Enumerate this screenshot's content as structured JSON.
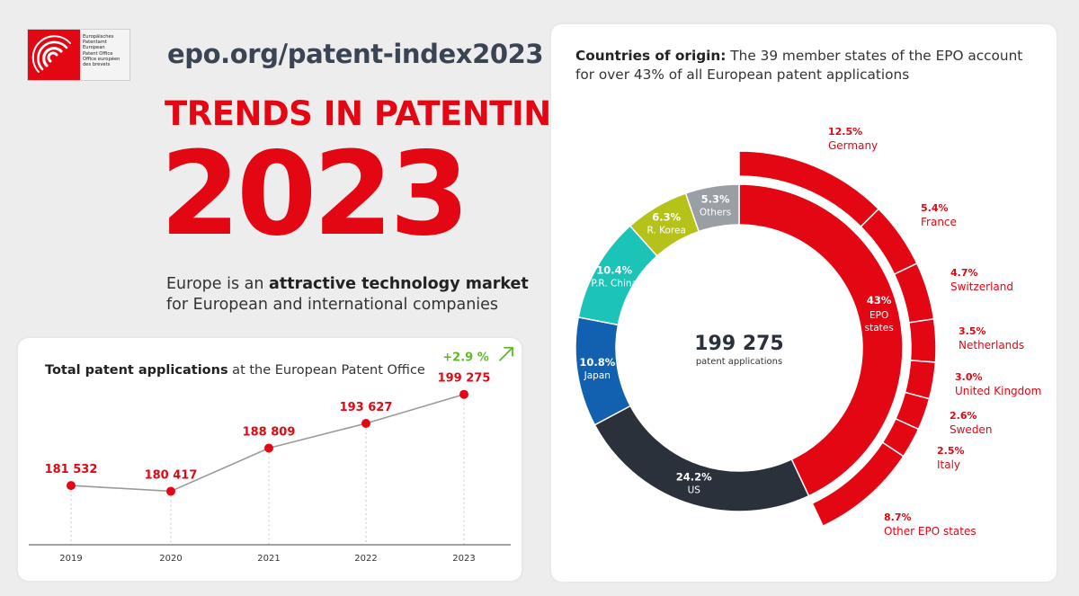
{
  "header": {
    "logo_lines": [
      "Europäisches",
      "Patentamt",
      "European",
      "Patent Office",
      "Office européen",
      "des brevets"
    ],
    "url": "epo.org/patent-index2023",
    "trends_title": "TRENDS IN PATENTING",
    "year": "2023",
    "tagline_pre": "Europe is an ",
    "tagline_bold": "attractive technology market",
    "tagline_post": "for European and international companies"
  },
  "colors": {
    "red": "#e30613",
    "dark": "#2b313b",
    "blue": "#1260b0",
    "teal": "#1cc4b8",
    "olive": "#b5c21a",
    "gray": "#9a9fa6",
    "green": "#5fb829"
  },
  "chart_data": [
    {
      "type": "line",
      "title_bold": "Total patent applications",
      "title_rest": " at the European Patent Office",
      "x": [
        "2019",
        "2020",
        "2021",
        "2022",
        "2023"
      ],
      "values": [
        181532,
        180417,
        188809,
        193627,
        199275
      ],
      "value_labels": [
        "181 532",
        "180 417",
        "188 809",
        "193 627",
        "199 275"
      ],
      "growth_label": "+2.9 %",
      "ylim": [
        170000,
        205000
      ]
    },
    {
      "type": "pie",
      "title_bold": "Countries of origin:",
      "title_rest": " The 39 member states of the EPO account for over 43% of all European patent applications",
      "center_value": "199 275",
      "center_label": "patent applications",
      "slices": [
        {
          "label": "EPO states",
          "value": 43,
          "display": "43%",
          "color": "#e30613"
        },
        {
          "label": "US",
          "value": 24.2,
          "display": "24.2%",
          "color": "#2b313b"
        },
        {
          "label": "Japan",
          "value": 10.8,
          "display": "10.8%",
          "color": "#1260b0"
        },
        {
          "label": "P.R. China",
          "value": 10.4,
          "display": "10.4%",
          "color": "#1cc4b8"
        },
        {
          "label": "R. Korea",
          "value": 6.3,
          "display": "6.3%",
          "color": "#b5c21a"
        },
        {
          "label": "Others",
          "value": 5.3,
          "display": "5.3%",
          "color": "#9a9fa6"
        }
      ],
      "breakdown": [
        {
          "label": "Germany",
          "value": 12.5,
          "display": "12.5%"
        },
        {
          "label": "France",
          "value": 5.4,
          "display": "5.4%"
        },
        {
          "label": "Switzerland",
          "value": 4.7,
          "display": "4.7%"
        },
        {
          "label": "Netherlands",
          "value": 3.5,
          "display": "3.5%"
        },
        {
          "label": "United Kingdom",
          "value": 3.0,
          "display": "3.0%"
        },
        {
          "label": "Sweden",
          "value": 2.6,
          "display": "2.6%"
        },
        {
          "label": "Italy",
          "value": 2.5,
          "display": "2.5%"
        },
        {
          "label": "Other EPO states",
          "value": 8.7,
          "display": "8.7%"
        }
      ]
    }
  ]
}
